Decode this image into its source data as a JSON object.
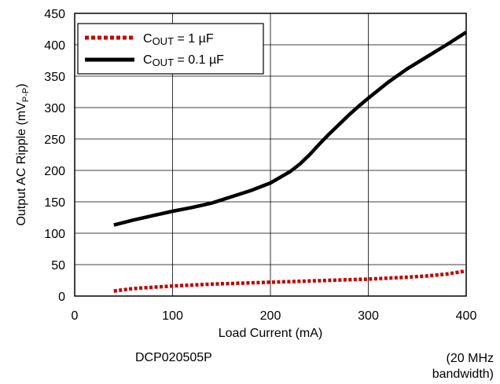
{
  "chart_data": {
    "type": "line",
    "title": "",
    "xlabel": "Load Current (mA)",
    "ylabel": {
      "main": "Output AC Ripple (mV",
      "sub": "P-P",
      "close": ")"
    },
    "xlim": [
      0,
      400
    ],
    "ylim": [
      0,
      450
    ],
    "x_ticks": [
      0,
      100,
      200,
      300,
      400
    ],
    "y_ticks": [
      0,
      50,
      100,
      150,
      200,
      250,
      300,
      350,
      400,
      450
    ],
    "grid": true,
    "legend_position": "top-left",
    "series": [
      {
        "name": {
          "prefix": "C",
          "sub": "OUT",
          "suffix": " = 1 µF"
        },
        "color": "#c00000",
        "style": "dotted",
        "x": [
          40,
          60,
          80,
          100,
          120,
          140,
          160,
          180,
          200,
          220,
          240,
          260,
          280,
          300,
          320,
          340,
          360,
          380,
          400
        ],
        "y": [
          8,
          12,
          14,
          16,
          17.5,
          19,
          20,
          21,
          22,
          23,
          24,
          25,
          26,
          27,
          28.5,
          30,
          32,
          35,
          40
        ]
      },
      {
        "name": {
          "prefix": "C",
          "sub": "OUT",
          "suffix": " = 0.1 µF"
        },
        "color": "#000000",
        "style": "solid",
        "x": [
          40,
          60,
          80,
          100,
          120,
          140,
          160,
          180,
          200,
          210,
          220,
          230,
          240,
          250,
          260,
          270,
          280,
          290,
          300,
          320,
          340,
          360,
          380,
          400
        ],
        "y": [
          113,
          121,
          128,
          135,
          141,
          148,
          158,
          168,
          180,
          189,
          198,
          210,
          225,
          242,
          258,
          273,
          288,
          302,
          315,
          340,
          362,
          381,
          400,
          420
        ]
      }
    ]
  },
  "captions": {
    "part_number": "DCP020505P",
    "bandwidth_line1": "(20 MHz",
    "bandwidth_line2": "bandwidth)"
  }
}
